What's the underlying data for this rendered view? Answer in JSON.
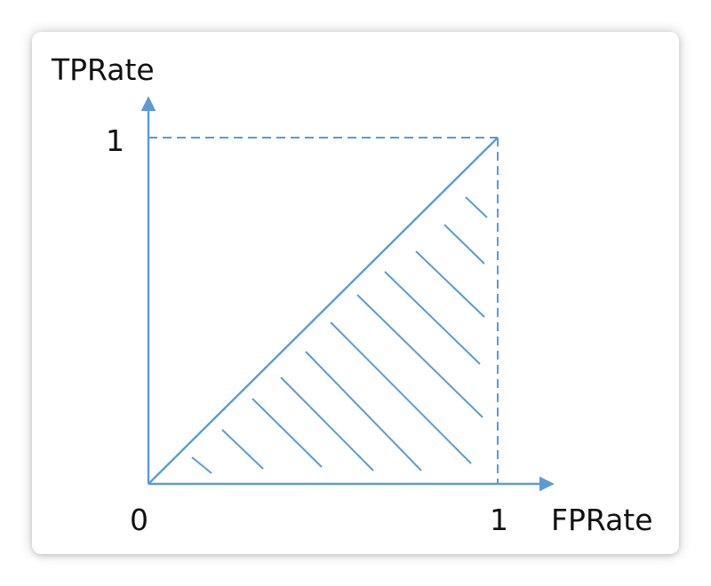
{
  "diagram": {
    "y_axis_label": "TPRate",
    "x_axis_label": "FPRate",
    "origin_label": "0",
    "y_max_label": "1",
    "x_max_label": "1"
  },
  "colors": {
    "line": "#5b9bd5",
    "text": "#111111",
    "background": "#ffffff"
  }
}
